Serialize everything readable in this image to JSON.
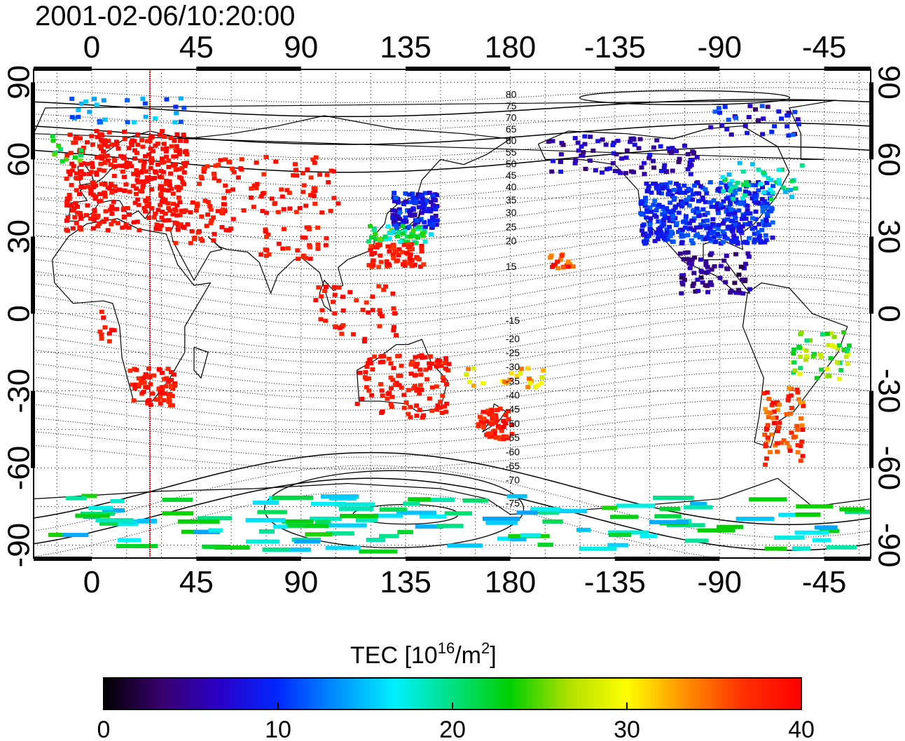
{
  "title": "2001-02-06/10:20:00",
  "colorbar": {
    "label_main": "TEC  [10",
    "label_sup1": "16",
    "label_mid": "/m",
    "label_sup2": "2",
    "label_end": "]",
    "ticks": [
      "0",
      "10",
      "20",
      "30",
      "40"
    ],
    "range": [
      0,
      40
    ],
    "colors": [
      "#000000",
      "#3a006e",
      "#2a00c8",
      "#0028ff",
      "#0090ff",
      "#00f0ff",
      "#00e080",
      "#00d000",
      "#b0e000",
      "#ffff00",
      "#ff9000",
      "#ff3000",
      "#ff0000"
    ]
  },
  "axes": {
    "lon_ticks_top": [
      "0",
      "45",
      "90",
      "135",
      "180",
      "-135",
      "-90",
      "-45"
    ],
    "lon_ticks_bottom": [
      "0",
      "45",
      "90",
      "135",
      "180",
      "-135",
      "-90",
      "-45"
    ],
    "lat_ticks_left": [
      "90",
      "60",
      "30",
      "0",
      "-30",
      "-60",
      "-90"
    ],
    "lat_ticks_right": [
      "90",
      "60",
      "30",
      "0",
      "-30",
      "-60",
      "-90"
    ],
    "lon_range": [
      -25,
      335
    ],
    "lat_range": [
      -95,
      95
    ]
  },
  "meridian_line_lon": 25,
  "contour_labels": [
    "80",
    "75",
    "70",
    "65",
    "60",
    "55",
    "50",
    "45",
    "40",
    "35",
    "30",
    "25",
    "20",
    "15",
    "-15",
    "-20",
    "-25",
    "-30",
    "-35",
    "-40",
    "-45",
    "-50",
    "-55",
    "-60",
    "-65",
    "-70",
    "-75"
  ],
  "tec_regions": [
    {
      "name": "europe",
      "lon": [
        -12,
        40
      ],
      "lat": [
        33,
        72
      ],
      "tec": [
        38,
        40
      ],
      "count": 380
    },
    {
      "name": "russia-asia",
      "lon": [
        45,
        105
      ],
      "lat": [
        40,
        62
      ],
      "tec": [
        37,
        40
      ],
      "count": 90
    },
    {
      "name": "middle-east",
      "lon": [
        35,
        60
      ],
      "lat": [
        28,
        45
      ],
      "tec": [
        37,
        40
      ],
      "count": 40
    },
    {
      "name": "india",
      "lon": [
        70,
        100
      ],
      "lat": [
        22,
        35
      ],
      "tec": [
        37,
        40
      ],
      "count": 30
    },
    {
      "name": "japan-north",
      "lon": [
        128,
        148
      ],
      "lat": [
        34,
        48
      ],
      "tec": [
        5,
        12
      ],
      "count": 110
    },
    {
      "name": "japan-mid",
      "lon": [
        118,
        145
      ],
      "lat": [
        28,
        35
      ],
      "tec": [
        16,
        26
      ],
      "count": 50
    },
    {
      "name": "japan-south",
      "lon": [
        118,
        142
      ],
      "lat": [
        19,
        28
      ],
      "tec": [
        36,
        40
      ],
      "count": 70
    },
    {
      "name": "se-asia",
      "lon": [
        95,
        130
      ],
      "lat": [
        -10,
        12
      ],
      "tec": [
        37,
        40
      ],
      "count": 45
    },
    {
      "name": "australia",
      "lon": [
        113,
        153
      ],
      "lat": [
        -40,
        -15
      ],
      "tec": [
        37,
        40
      ],
      "count": 120
    },
    {
      "name": "new-zealand",
      "lon": [
        165,
        180
      ],
      "lat": [
        -48,
        -36
      ],
      "tec": [
        36,
        40
      ],
      "count": 60
    },
    {
      "name": "pacific-islands",
      "lon": [
        160,
        195
      ],
      "lat": [
        -28,
        -20
      ],
      "tec": [
        28,
        35
      ],
      "count": 25
    },
    {
      "name": "hawaii",
      "lon": [
        196,
        206
      ],
      "lat": [
        18,
        24
      ],
      "tec": [
        33,
        40
      ],
      "count": 18
    },
    {
      "name": "north-america",
      "lon": [
        -125,
        -68
      ],
      "lat": [
        28,
        52
      ],
      "tec": [
        7,
        12
      ],
      "count": 420
    },
    {
      "name": "canada-north",
      "lon": [
        -165,
        -100
      ],
      "lat": [
        55,
        70
      ],
      "tec": [
        3,
        9
      ],
      "count": 90
    },
    {
      "name": "central-america",
      "lon": [
        -108,
        -78
      ],
      "lat": [
        8,
        25
      ],
      "tec": [
        2,
        7
      ],
      "count": 70
    },
    {
      "name": "arctic-canada",
      "lon": [
        -95,
        -55
      ],
      "lat": [
        70,
        82
      ],
      "tec": [
        3,
        12
      ],
      "count": 35
    },
    {
      "name": "canada-east",
      "lon": [
        -90,
        -55
      ],
      "lat": [
        45,
        60
      ],
      "tec": [
        14,
        22
      ],
      "count": 45
    },
    {
      "name": "south-america-north",
      "lon": [
        -60,
        -35
      ],
      "lat": [
        -25,
        -5
      ],
      "tec": [
        20,
        30
      ],
      "count": 50
    },
    {
      "name": "south-america-south",
      "lon": [
        -72,
        -55
      ],
      "lat": [
        -58,
        -28
      ],
      "tec": [
        33,
        40
      ],
      "count": 70
    },
    {
      "name": "antarctica-ring",
      "lon": [
        -20,
        330
      ],
      "lat": [
        -92,
        -70
      ],
      "tec": [
        14,
        24
      ],
      "count": 120
    },
    {
      "name": "arctic-europe",
      "lon": [
        -10,
        40
      ],
      "lat": [
        75,
        85
      ],
      "tec": [
        10,
        16
      ],
      "count": 30
    },
    {
      "name": "atlantic-north",
      "lon": [
        -20,
        -5
      ],
      "lat": [
        60,
        70
      ],
      "tec": [
        18,
        26
      ],
      "count": 12
    },
    {
      "name": "africa-south",
      "lon": [
        15,
        35
      ],
      "lat": [
        -35,
        -20
      ],
      "tec": [
        37,
        40
      ],
      "count": 70
    },
    {
      "name": "africa-east",
      "lon": [
        2,
        10
      ],
      "lat": [
        -10,
        3
      ],
      "tec": [
        37,
        40
      ],
      "count": 10
    }
  ]
}
